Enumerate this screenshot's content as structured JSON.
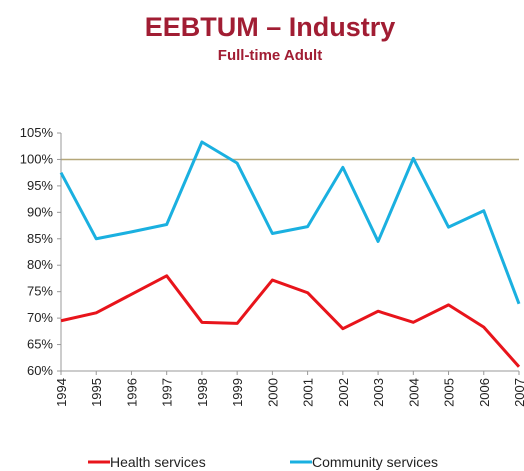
{
  "chart_data": {
    "type": "line",
    "title": "EEBTUM – Industry",
    "subtitle": "Full-time Adult",
    "title_color": "#a11d33",
    "categories": [
      "1994",
      "1995",
      "1996",
      "1997",
      "1998",
      "1999",
      "2000",
      "2001",
      "2002",
      "2003",
      "2004",
      "2005",
      "2006",
      "2007"
    ],
    "series": [
      {
        "name": "Health services",
        "color": "#e8141b",
        "values": [
          69.5,
          71,
          74.5,
          78,
          69.2,
          69,
          77.2,
          74.8,
          68,
          71.3,
          69.2,
          72.5,
          68.3,
          60.8
        ]
      },
      {
        "name": "Community services",
        "color": "#1ab0e0",
        "values": [
          97.5,
          85,
          86.3,
          87.7,
          103.3,
          99.3,
          86,
          87.3,
          98.5,
          84.5,
          100.2,
          87.2,
          90.3,
          72.7
        ]
      }
    ],
    "ylim": [
      60,
      105
    ],
    "yticks": [
      {
        "value": 60,
        "label": "60%"
      },
      {
        "value": 65,
        "label": "65%"
      },
      {
        "value": 70,
        "label": "70%"
      },
      {
        "value": 75,
        "label": "75%"
      },
      {
        "value": 80,
        "label": "80%"
      },
      {
        "value": 85,
        "label": "85%"
      },
      {
        "value": 90,
        "label": "90%"
      },
      {
        "value": 95,
        "label": "95%"
      },
      {
        "value": 100,
        "label": "100%"
      },
      {
        "value": 105,
        "label": "105%"
      }
    ],
    "highlight_line": 100,
    "highlight_color": "#b5a779",
    "legend": "bottom"
  }
}
